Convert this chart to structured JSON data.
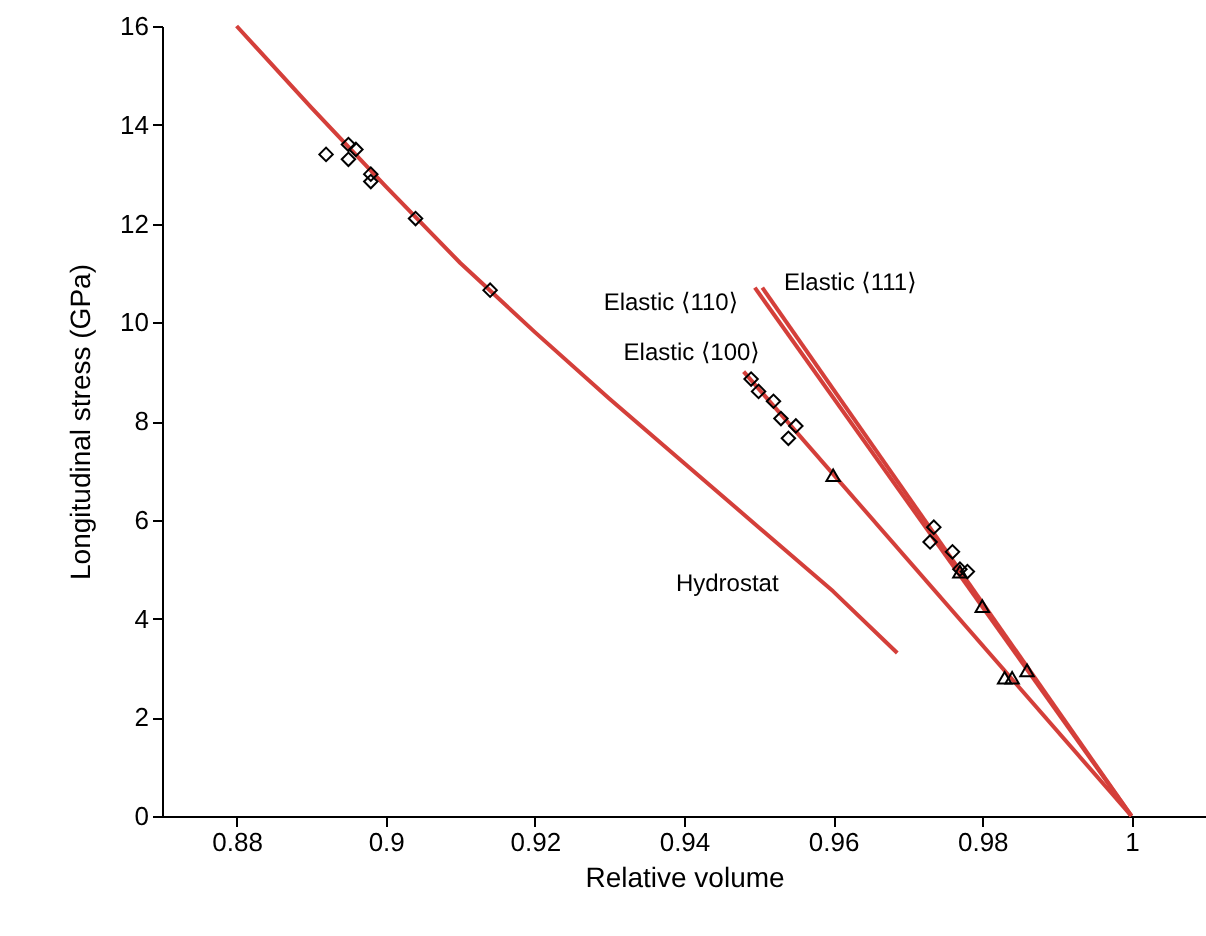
{
  "chart_data": {
    "type": "line",
    "xlabel": "Relative volume",
    "ylabel": "Longitudinal stress (GPa)",
    "xlim": [
      0.87,
      1.01
    ],
    "ylim": [
      0,
      16
    ],
    "xticks": [
      0.88,
      0.9,
      0.92,
      0.94,
      0.96,
      0.98,
      1
    ],
    "yticks": [
      0,
      2,
      4,
      6,
      8,
      10,
      12,
      14,
      16
    ],
    "grid": false,
    "legend": false,
    "line_style": "solid",
    "series": [
      {
        "name": "Hydrostat",
        "marker": "none",
        "color": "#d43f3a",
        "x": [
          0.88,
          0.89,
          0.9,
          0.91,
          0.92,
          0.93,
          0.94,
          0.95,
          0.96,
          0.9686
        ],
        "values": [
          16.0,
          14.35,
          12.75,
          11.2,
          9.8,
          8.45,
          7.15,
          5.85,
          4.55,
          3.3
        ]
      },
      {
        "name": "Elastic ⟨100⟩",
        "marker": "none",
        "color": "#d43f3a",
        "x": [
          0.948,
          1
        ],
        "values": [
          9.0,
          0
        ]
      },
      {
        "name": "Elastic ⟨110⟩",
        "marker": "none",
        "color": "#d43f3a",
        "x": [
          0.9495,
          1
        ],
        "values": [
          10.7,
          0
        ]
      },
      {
        "name": "Elastic ⟨111⟩",
        "marker": "none",
        "color": "#d43f3a",
        "x": [
          0.9505,
          1
        ],
        "values": [
          10.7,
          0
        ]
      },
      {
        "type": "scatter",
        "marker": "diamond",
        "color": "#000000",
        "x": [
          0.892,
          0.895,
          0.896,
          0.895,
          0.898,
          0.898,
          0.904,
          0.914,
          0.949,
          0.95,
          0.952,
          0.953,
          0.955,
          0.954,
          0.973,
          0.9735,
          0.976,
          0.977,
          0.978
        ],
        "values": [
          13.4,
          13.6,
          13.5,
          13.3,
          13.0,
          12.85,
          12.1,
          10.65,
          8.85,
          8.6,
          8.4,
          8.05,
          7.9,
          7.65,
          5.55,
          5.85,
          5.35,
          5.0,
          4.95
        ]
      },
      {
        "type": "scatter",
        "marker": "triangle",
        "color": "#000000",
        "x": [
          0.96,
          0.977,
          0.98,
          0.983,
          0.984,
          0.986
        ],
        "values": [
          6.9,
          4.95,
          4.25,
          2.8,
          2.8,
          2.95
        ]
      }
    ]
  }
}
